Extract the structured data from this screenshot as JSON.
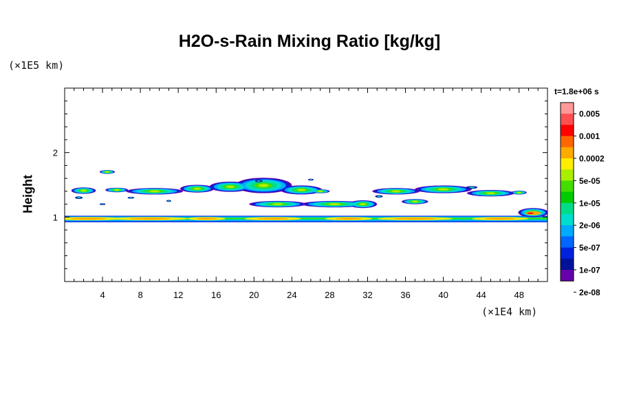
{
  "chart_data": {
    "type": "heatmap",
    "title": "H2O-s-Rain Mixing Ratio [kg/kg]",
    "xlabel": "",
    "ylabel": "Height",
    "x_unit": "(×1E4 km)",
    "y_unit": "(×1E5 km)",
    "time_label": "t=1.8e+06 s",
    "xlim": [
      0,
      51
    ],
    "ylim": [
      0,
      3
    ],
    "x_ticks": [
      "4",
      "8",
      "12",
      "16",
      "20",
      "24",
      "28",
      "32",
      "36",
      "40",
      "44",
      "48"
    ],
    "x_tick_values": [
      4,
      8,
      12,
      16,
      20,
      24,
      28,
      32,
      36,
      40,
      44,
      48
    ],
    "y_ticks": [
      "1",
      "2"
    ],
    "y_tick_values": [
      1,
      2
    ],
    "colorbar": {
      "colors": [
        "#ff9999",
        "#ff5050",
        "#ff0000",
        "#ff6600",
        "#ffaa00",
        "#ffee00",
        "#aaee00",
        "#44dd00",
        "#00cc00",
        "#00dd88",
        "#00ddcc",
        "#00aaff",
        "#0066ff",
        "#0022dd",
        "#001199",
        "#6600aa"
      ],
      "labels": [
        "0.005",
        "0.001",
        "0.0002",
        "5e-05",
        "1e-05",
        "2e-06",
        "5e-07",
        "1e-07",
        "2e-08"
      ]
    },
    "features": [
      {
        "name": "surface rain layer",
        "x_range": [
          0,
          51
        ],
        "y_center": 0.97,
        "y_thickness": 0.09,
        "value_range": [
          "5e-07",
          "0.0002"
        ]
      },
      {
        "name": "upper rain band left",
        "x_range": [
          1,
          13
        ],
        "y_center": 1.42,
        "value_range": [
          "2e-08",
          "1e-05"
        ]
      },
      {
        "name": "upper rain band center",
        "x_range": [
          12,
          32
        ],
        "y_center": 1.45,
        "value_range": [
          "2e-08",
          "5e-05"
        ]
      },
      {
        "name": "upper rain band right",
        "x_range": [
          32,
          49
        ],
        "y_center": 1.42,
        "value_range": [
          "2e-08",
          "1e-05"
        ]
      },
      {
        "name": "eastern convective cell",
        "x_range": [
          47,
          51
        ],
        "y_center": 1.05,
        "value_range": [
          "1e-07",
          "0.0002"
        ]
      }
    ]
  }
}
